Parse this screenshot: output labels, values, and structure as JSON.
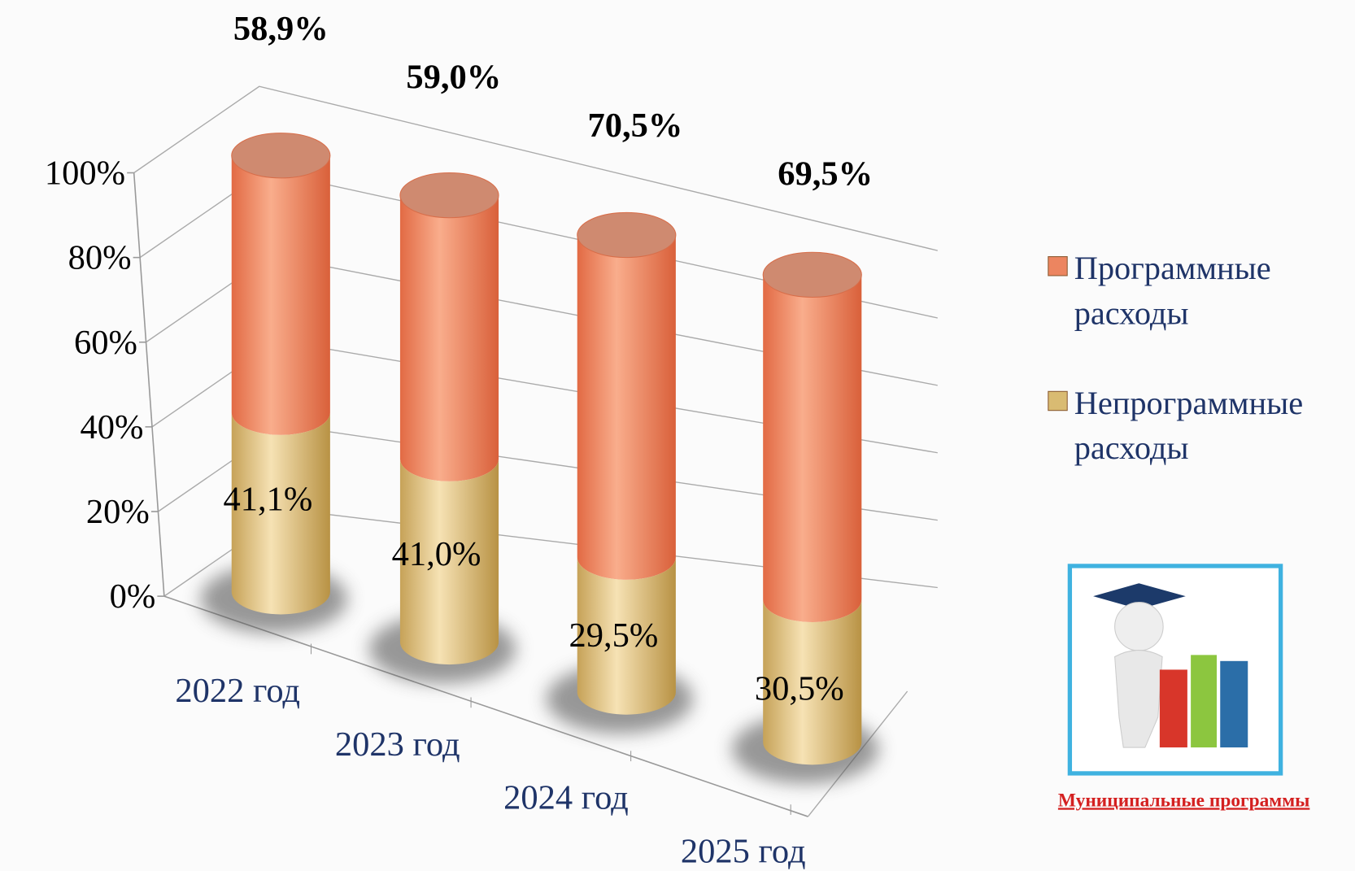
{
  "chart_data": {
    "type": "cylinder_stacked",
    "categories": [
      "2022 год",
      "2023 год",
      "2024 год",
      "2025 год"
    ],
    "series": [
      {
        "name": "Непрограммные расходы",
        "color": "#d9bb72",
        "values": [
          41.1,
          41.0,
          29.5,
          30.5
        ],
        "value_labels": [
          "41,1%",
          "41,0%",
          "29,5%",
          "30,5%"
        ]
      },
      {
        "name": "Программные расходы",
        "color": "#ec8560",
        "values": [
          58.9,
          59.0,
          70.5,
          69.5
        ],
        "value_labels": [
          "58,9%",
          "59,0%",
          "70,5%",
          "69,5%"
        ]
      }
    ],
    "ylim": [
      0,
      100
    ],
    "yticks": [
      {
        "value": 0,
        "label": "0%"
      },
      {
        "value": 20,
        "label": "20%"
      },
      {
        "value": 40,
        "label": "40%"
      },
      {
        "value": 60,
        "label": "60%"
      },
      {
        "value": 80,
        "label": "80%"
      },
      {
        "value": 100,
        "label": "100%"
      }
    ],
    "grid": true,
    "legend": "right",
    "image_caption": "Муниципальные программы"
  }
}
